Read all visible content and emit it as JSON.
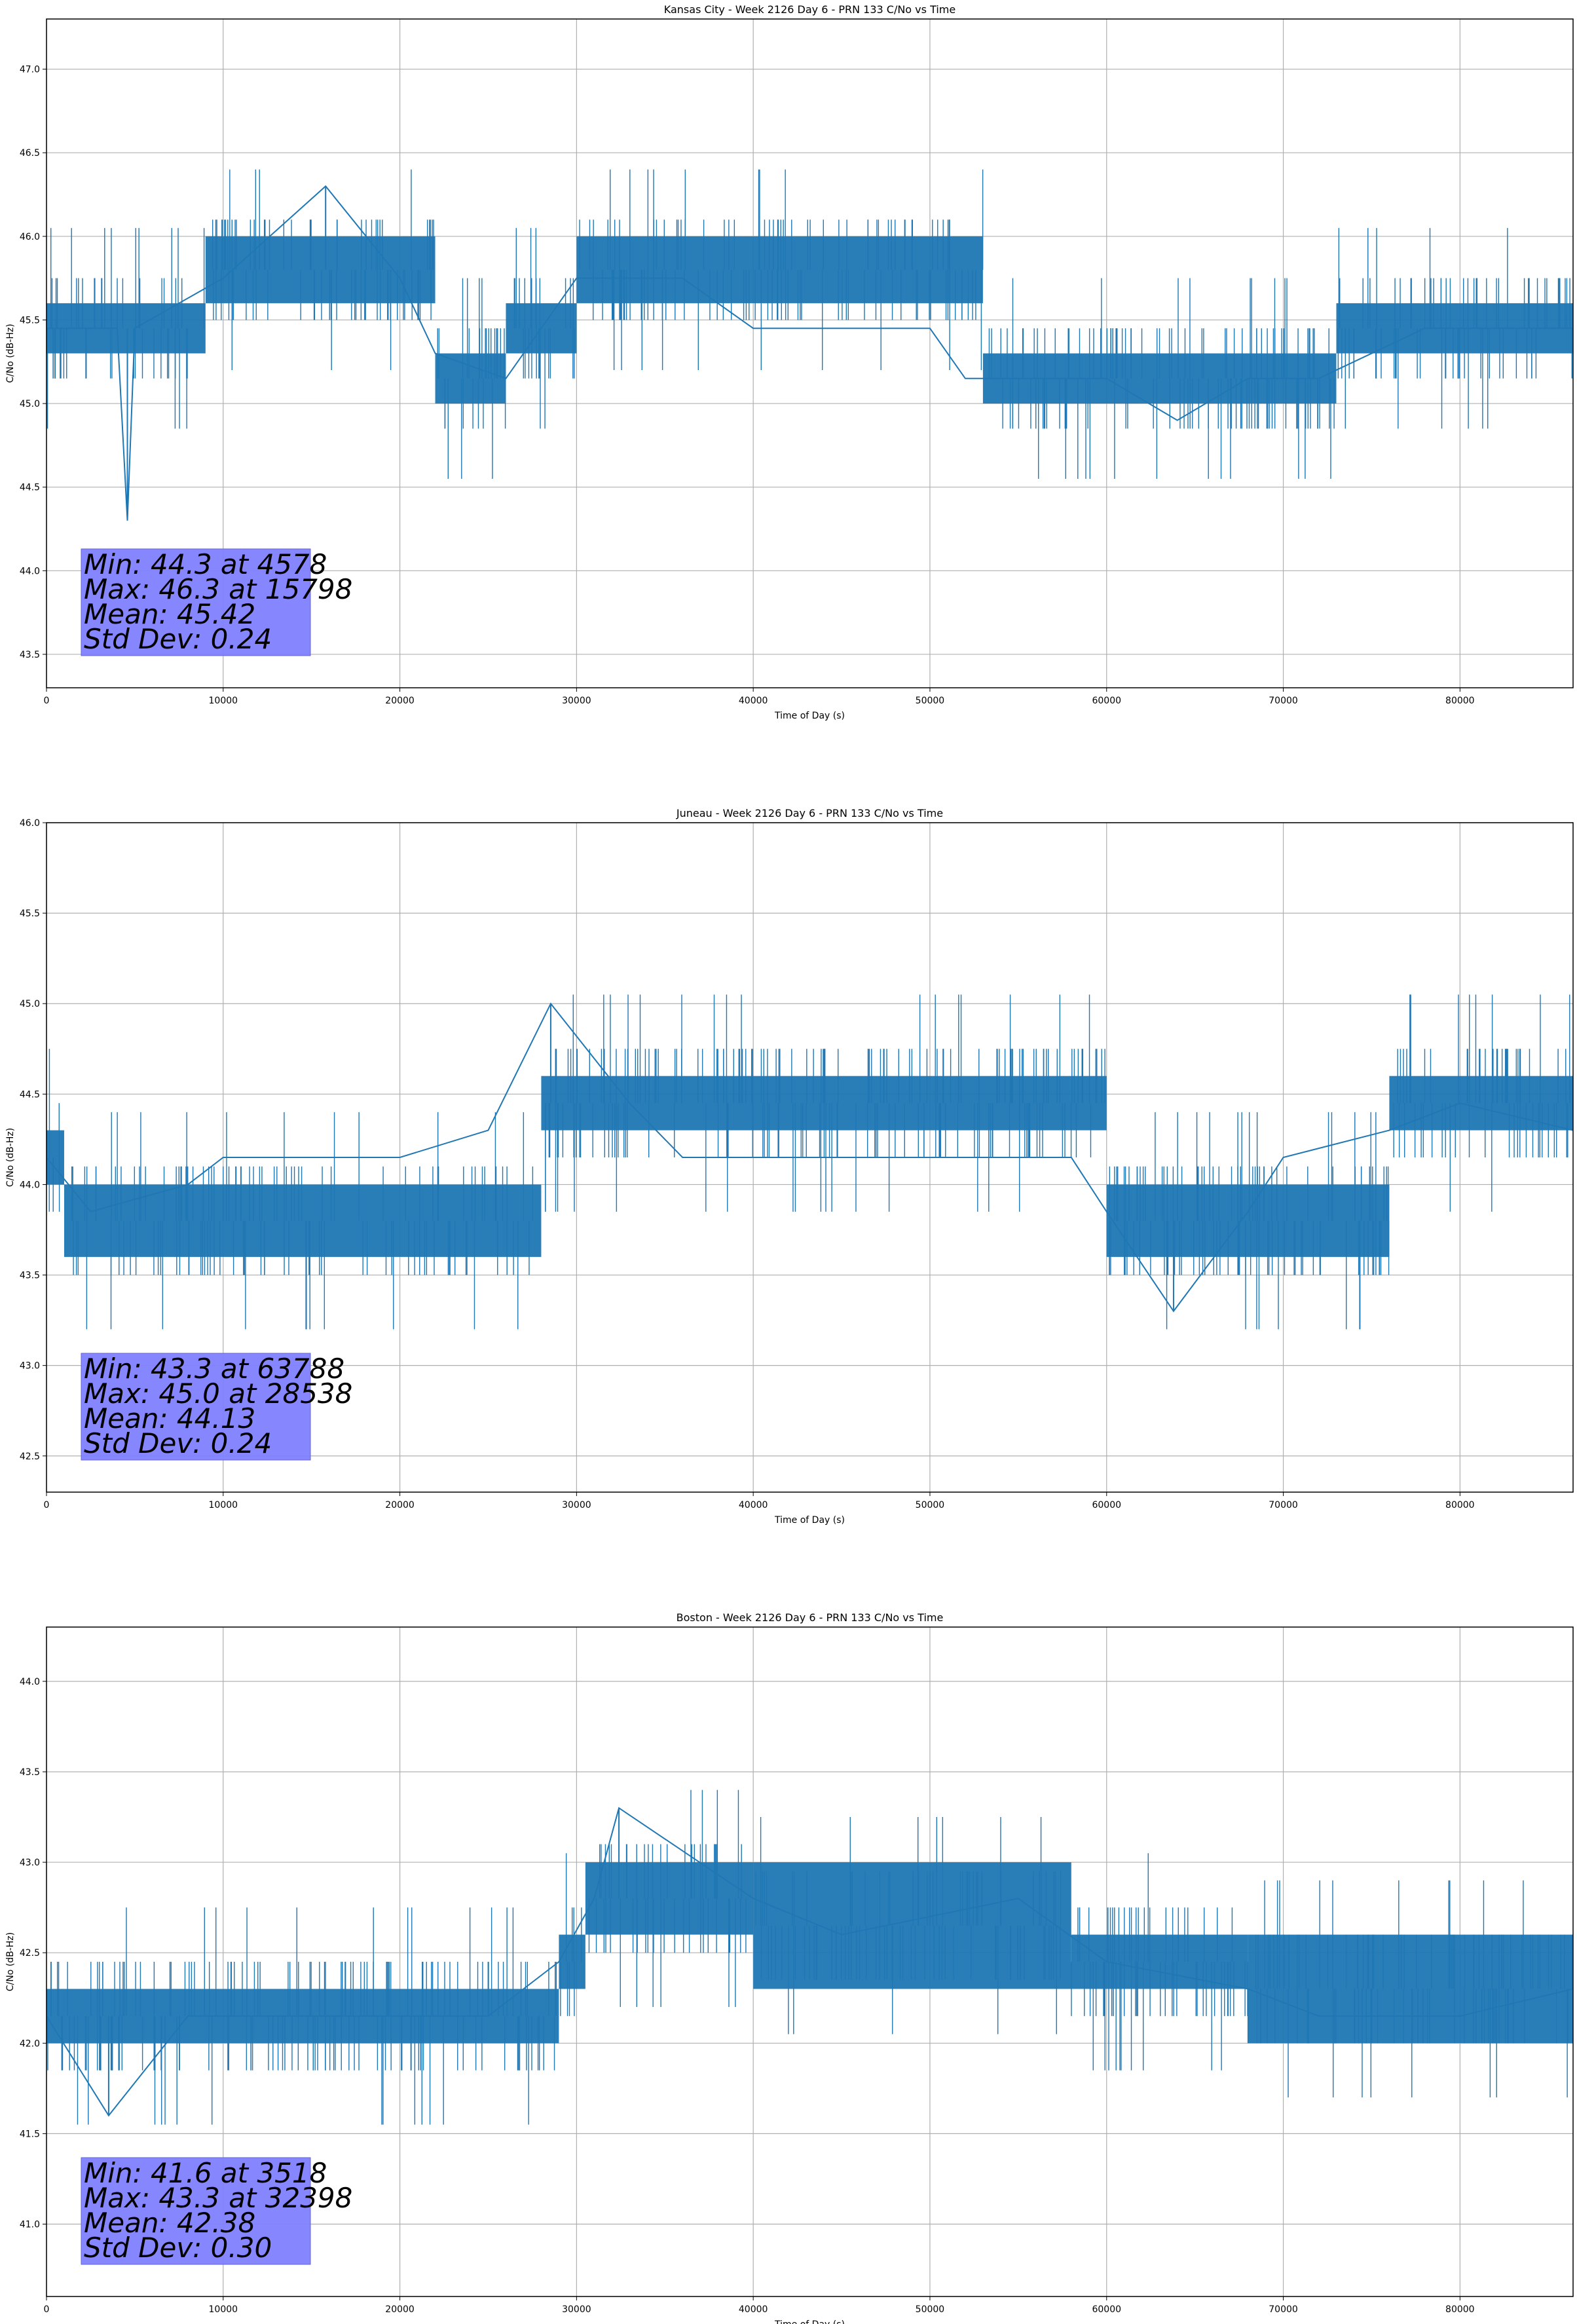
{
  "chart_data": [
    {
      "type": "line",
      "title": "Kansas City - Week 2126 Day 6 - PRN 133 C/No vs Time",
      "xlabel": "Time of Day (s)",
      "ylabel": "C/No (dB-Hz)",
      "xlim": [
        0,
        86400
      ],
      "ylim": [
        43.3,
        47.3
      ],
      "xticks": [
        0,
        10000,
        20000,
        30000,
        40000,
        50000,
        60000,
        70000,
        80000
      ],
      "yticks": [
        "43.5",
        "44.0",
        "44.5",
        "45.0",
        "45.5",
        "46.0",
        "46.5",
        "47.0"
      ],
      "grid": true,
      "color": "#1f77b4",
      "series": [
        {
          "name": "C/No",
          "x": [
            0,
            4000,
            4578,
            5000,
            10000,
            15798,
            20000,
            22000,
            26000,
            30000,
            36000,
            40000,
            50000,
            52000,
            60000,
            64000,
            68000,
            72000,
            78000,
            86400
          ],
          "y": [
            45.45,
            45.45,
            44.3,
            45.45,
            45.75,
            46.3,
            45.75,
            45.3,
            45.15,
            45.75,
            45.75,
            45.45,
            45.45,
            45.15,
            45.15,
            44.9,
            45.15,
            45.15,
            45.45,
            45.45
          ]
        }
      ],
      "bands": [
        [
          0,
          45.3,
          45.6
        ],
        [
          9000,
          45.6,
          46.0
        ],
        [
          22000,
          45.0,
          45.3
        ],
        [
          26000,
          45.3,
          45.6
        ],
        [
          30000,
          45.6,
          46.0
        ],
        [
          53000,
          45.0,
          45.3
        ],
        [
          73000,
          45.3,
          45.6
        ]
      ],
      "stats_box": {
        "min_line": "Min: 44.3 at 4578",
        "max_line": "Max: 46.3 at 15798",
        "mean_line": "Mean: 45.42",
        "std_line": "Std Dev: 0.24",
        "color": "#8080ff"
      }
    },
    {
      "type": "line",
      "title": "Juneau - Week 2126 Day 6 - PRN 133 C/No vs Time",
      "xlabel": "Time of Day (s)",
      "ylabel": "C/No (dB-Hz)",
      "xlim": [
        0,
        86400
      ],
      "ylim": [
        42.3,
        46.0
      ],
      "xticks": [
        0,
        10000,
        20000,
        30000,
        40000,
        50000,
        60000,
        70000,
        80000
      ],
      "yticks": [
        "42.5",
        "43.0",
        "43.5",
        "44.0",
        "44.5",
        "45.0",
        "45.5",
        "46.0"
      ],
      "grid": true,
      "color": "#1f77b4",
      "series": [
        {
          "name": "C/No",
          "x": [
            0,
            2500,
            8000,
            10000,
            20000,
            25000,
            28538,
            33000,
            36000,
            50000,
            55000,
            58000,
            60000,
            63788,
            68000,
            70000,
            76000,
            80000,
            86400
          ],
          "y": [
            44.15,
            43.85,
            44.0,
            44.15,
            44.15,
            44.3,
            45.0,
            44.45,
            44.15,
            44.15,
            44.15,
            44.15,
            43.85,
            43.3,
            43.85,
            44.15,
            44.3,
            44.45,
            44.3
          ]
        }
      ],
      "bands": [
        [
          0,
          44.0,
          44.3
        ],
        [
          1000,
          43.6,
          44.0
        ],
        [
          28000,
          44.3,
          44.6
        ],
        [
          60000,
          43.6,
          44.0
        ],
        [
          76000,
          44.3,
          44.6
        ]
      ],
      "stats_box": {
        "min_line": "Min: 43.3 at 63788",
        "max_line": "Max: 45.0 at 28538",
        "mean_line": "Mean: 44.13",
        "std_line": "Std Dev: 0.24",
        "color": "#8080ff"
      }
    },
    {
      "type": "line",
      "title": "Boston - Week 2126 Day 6 - PRN 133 C/No vs Time",
      "xlabel": "Time of Day (s)",
      "ylabel": "C/No (dB-Hz)",
      "xlim": [
        0,
        86400
      ],
      "ylim": [
        40.6,
        44.3
      ],
      "xticks": [
        0,
        10000,
        20000,
        30000,
        40000,
        50000,
        60000,
        70000,
        80000
      ],
      "yticks": [
        "41.0",
        "41.5",
        "42.0",
        "42.5",
        "43.0",
        "43.5",
        "44.0"
      ],
      "grid": true,
      "color": "#1f77b4",
      "series": [
        {
          "name": "C/No",
          "x": [
            0,
            3518,
            8000,
            15000,
            25000,
            29000,
            31000,
            32398,
            40000,
            45000,
            55000,
            60000,
            68000,
            72000,
            80000,
            86400
          ],
          "y": [
            42.15,
            41.6,
            42.15,
            42.15,
            42.15,
            42.45,
            42.8,
            43.3,
            42.8,
            42.6,
            42.8,
            42.45,
            42.3,
            42.15,
            42.15,
            42.3
          ]
        }
      ],
      "bands": [
        [
          0,
          42.0,
          42.3
        ],
        [
          29000,
          42.3,
          42.6
        ],
        [
          30500,
          42.6,
          43.0
        ],
        [
          40000,
          42.3,
          43.0
        ],
        [
          58000,
          42.3,
          42.6
        ],
        [
          68000,
          42.0,
          42.6
        ]
      ],
      "stats_box": {
        "min_line": "Min: 41.6 at 3518",
        "max_line": "Max: 43.3 at 32398",
        "mean_line": "Mean: 42.38",
        "std_line": "Std Dev: 0.30",
        "color": "#8080ff"
      }
    }
  ]
}
